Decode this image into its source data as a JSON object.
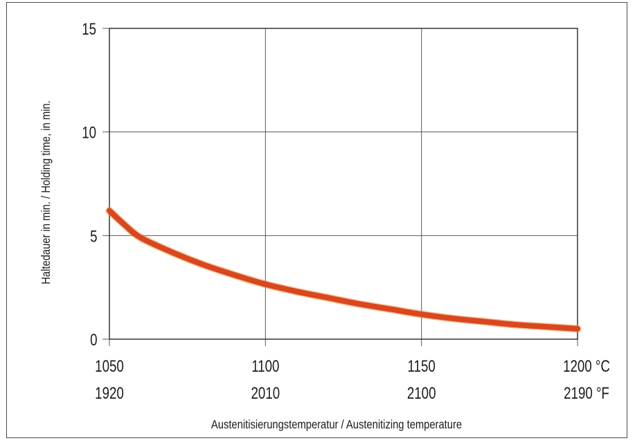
{
  "chart_data": {
    "type": "line",
    "title": "",
    "ylabel": "Haltedauer in min. / Holding time, in min.",
    "xlabel": "Austenitisierungstemperatur / Austenitizing temperature",
    "xlim": [
      1050,
      1200
    ],
    "ylim": [
      0,
      15
    ],
    "grid": true,
    "x_ticks": [
      1050,
      1100,
      1150,
      1200
    ],
    "x_tick_labels_c": [
      "1050",
      "1100",
      "1150",
      "1200 °C"
    ],
    "x_tick_labels_f": [
      "1920",
      "2010",
      "2100",
      "2190 °F"
    ],
    "y_ticks": [
      0,
      5,
      10,
      15
    ],
    "y_tick_labels": [
      "0",
      "5",
      "10",
      "15"
    ],
    "series": [
      {
        "color": "#d9471f",
        "x": [
          1050,
          1055,
          1060,
          1070,
          1080,
          1090,
          1100,
          1110,
          1120,
          1130,
          1140,
          1150,
          1160,
          1170,
          1180,
          1190,
          1200
        ],
        "y": [
          6.2,
          5.5,
          4.9,
          4.2,
          3.6,
          3.1,
          2.65,
          2.3,
          2.0,
          1.7,
          1.45,
          1.2,
          1.0,
          0.85,
          0.7,
          0.6,
          0.5
        ]
      }
    ]
  }
}
